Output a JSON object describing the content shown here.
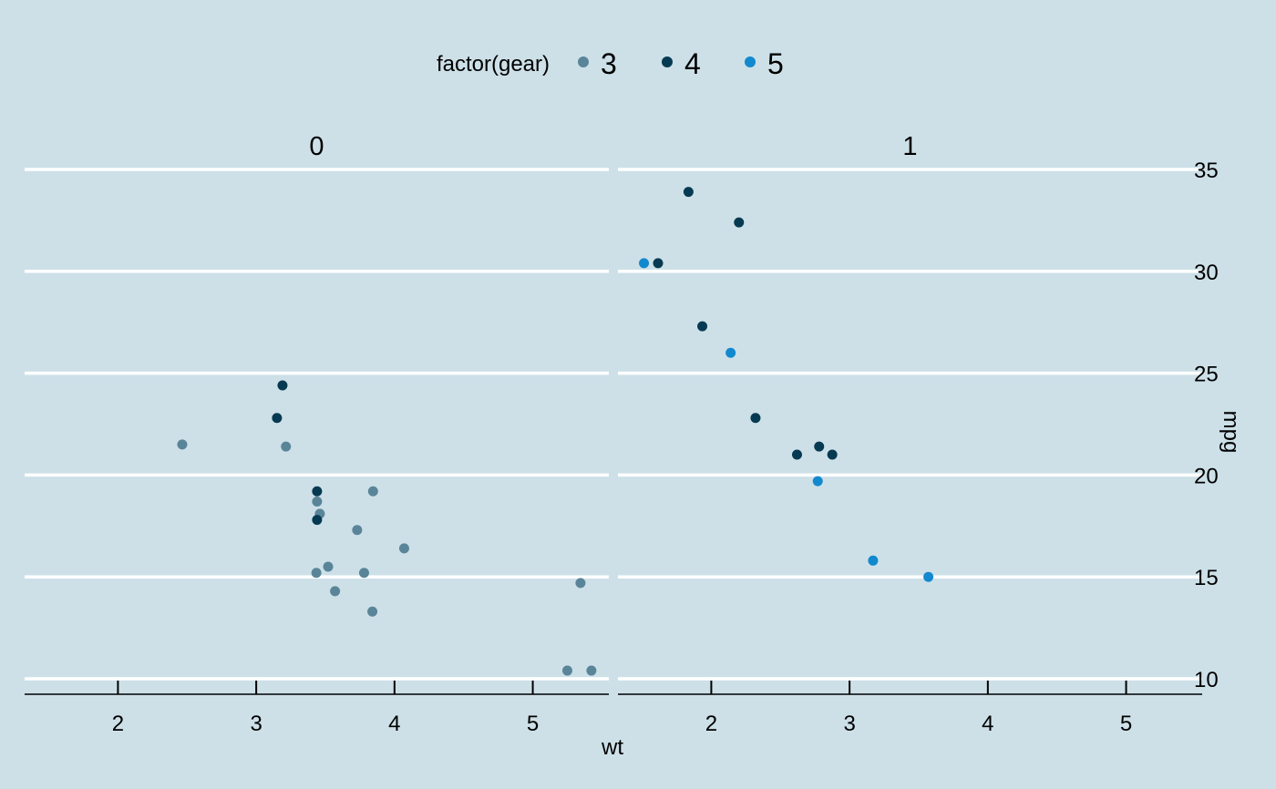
{
  "chart_data": {
    "type": "scatter",
    "xlabel": "wt",
    "ylabel": "mpg",
    "xlim": [
      1.325,
      5.55
    ],
    "ylim": [
      9.3,
      35.2
    ],
    "x_ticks": [
      2,
      3,
      4,
      5
    ],
    "y_ticks": [
      10,
      15,
      20,
      25,
      30,
      35
    ],
    "grid": "major y only",
    "legend": {
      "position": "top",
      "title": "factor(gear)",
      "entries": [
        {
          "label": "3",
          "color": "#5a8599"
        },
        {
          "label": "4",
          "color": "#063a52"
        },
        {
          "label": "5",
          "color": "#1289ce"
        }
      ]
    },
    "facets": [
      {
        "label": "0",
        "points": [
          {
            "x": 2.465,
            "y": 21.5,
            "gear": "3"
          },
          {
            "x": 3.215,
            "y": 21.4,
            "gear": "3"
          },
          {
            "x": 3.44,
            "y": 18.7,
            "gear": "3"
          },
          {
            "x": 3.46,
            "y": 18.1,
            "gear": "3"
          },
          {
            "x": 3.57,
            "y": 14.3,
            "gear": "3"
          },
          {
            "x": 4.07,
            "y": 16.4,
            "gear": "3"
          },
          {
            "x": 3.73,
            "y": 17.3,
            "gear": "3"
          },
          {
            "x": 3.78,
            "y": 15.2,
            "gear": "3"
          },
          {
            "x": 5.25,
            "y": 10.4,
            "gear": "3"
          },
          {
            "x": 5.424,
            "y": 10.4,
            "gear": "3"
          },
          {
            "x": 5.345,
            "y": 14.7,
            "gear": "3"
          },
          {
            "x": 3.52,
            "y": 15.5,
            "gear": "3"
          },
          {
            "x": 3.435,
            "y": 15.2,
            "gear": "3"
          },
          {
            "x": 3.84,
            "y": 13.3,
            "gear": "3"
          },
          {
            "x": 3.845,
            "y": 19.2,
            "gear": "3"
          },
          {
            "x": 3.19,
            "y": 24.4,
            "gear": "4"
          },
          {
            "x": 3.15,
            "y": 22.8,
            "gear": "4"
          },
          {
            "x": 3.44,
            "y": 19.2,
            "gear": "4"
          },
          {
            "x": 3.44,
            "y": 17.8,
            "gear": "4"
          }
        ]
      },
      {
        "label": "1",
        "points": [
          {
            "x": 2.62,
            "y": 21.0,
            "gear": "4"
          },
          {
            "x": 2.875,
            "y": 21.0,
            "gear": "4"
          },
          {
            "x": 2.32,
            "y": 22.8,
            "gear": "4"
          },
          {
            "x": 2.2,
            "y": 32.4,
            "gear": "4"
          },
          {
            "x": 1.615,
            "y": 30.4,
            "gear": "4"
          },
          {
            "x": 1.835,
            "y": 33.9,
            "gear": "4"
          },
          {
            "x": 1.935,
            "y": 27.3,
            "gear": "4"
          },
          {
            "x": 2.78,
            "y": 21.4,
            "gear": "4"
          },
          {
            "x": 2.14,
            "y": 26.0,
            "gear": "5"
          },
          {
            "x": 1.513,
            "y": 30.4,
            "gear": "5"
          },
          {
            "x": 3.17,
            "y": 15.8,
            "gear": "5"
          },
          {
            "x": 2.77,
            "y": 19.7,
            "gear": "5"
          },
          {
            "x": 3.57,
            "y": 15.0,
            "gear": "5"
          }
        ]
      }
    ]
  }
}
